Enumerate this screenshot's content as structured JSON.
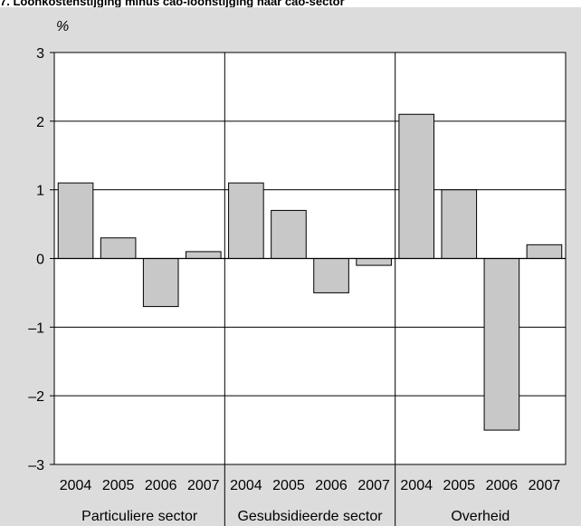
{
  "chart_data": {
    "type": "bar",
    "title": "7. Loonkostenstijging minus cao-loonstijging naar cao-sector",
    "ylabel": "%",
    "ylim": [
      -3,
      3
    ],
    "yticks": [
      "3",
      "2",
      "1",
      "0",
      "–1",
      "–2",
      "–3"
    ],
    "ytick_values": [
      3,
      2,
      1,
      0,
      -1,
      -2,
      -3
    ],
    "grid": true,
    "bar_color": "#c8c8c8",
    "groups": [
      {
        "name": "Particuliere sector",
        "categories": [
          "2004",
          "2005",
          "2006",
          "2007"
        ],
        "values": [
          1.1,
          0.3,
          -0.7,
          0.1
        ]
      },
      {
        "name": "Gesubsidieerde sector",
        "categories": [
          "2004",
          "2005",
          "2006",
          "2007"
        ],
        "values": [
          1.1,
          0.7,
          -0.5,
          -0.1
        ]
      },
      {
        "name": "Overheid",
        "categories": [
          "2004",
          "2005",
          "2006",
          "2007"
        ],
        "values": [
          2.1,
          1.0,
          -2.5,
          0.2
        ]
      }
    ]
  }
}
